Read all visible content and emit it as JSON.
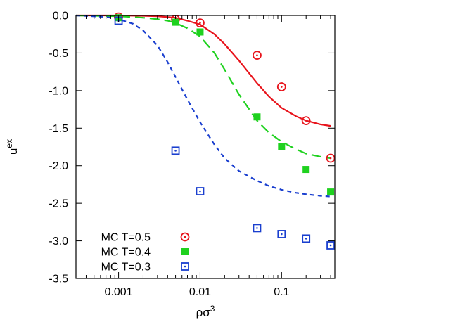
{
  "chart_data": {
    "type": "scatter",
    "x_scale": "log",
    "xlim": [
      0.0003,
      0.45
    ],
    "ylim": [
      -3.5,
      0.0
    ],
    "x_ticks": [
      {
        "value": 0.001,
        "label": "0.001"
      },
      {
        "value": 0.01,
        "label": "0.01"
      },
      {
        "value": 0.1,
        "label": "0.1"
      }
    ],
    "y_ticks": [
      {
        "value": 0.0,
        "label": "0.0"
      },
      {
        "value": -0.5,
        "label": "-0.5"
      },
      {
        "value": -1.0,
        "label": "-1.0"
      },
      {
        "value": -1.5,
        "label": "-1.5"
      },
      {
        "value": -2.0,
        "label": "-2.0"
      },
      {
        "value": -2.5,
        "label": "-2.5"
      },
      {
        "value": -3.0,
        "label": "-3.0"
      },
      {
        "value": -3.5,
        "label": "-3.5"
      }
    ],
    "xlabel": {
      "base": "ρσ",
      "sup": "3"
    },
    "ylabel": {
      "base": "u",
      "sup": "ex"
    },
    "legend_position": "bottom-left",
    "curves": [
      {
        "color": "#e8141c",
        "style": "solid",
        "x": [
          0.0003,
          0.001,
          0.002,
          0.003,
          0.005,
          0.007,
          0.01,
          0.015,
          0.02,
          0.03,
          0.05,
          0.07,
          0.1,
          0.15,
          0.2,
          0.3,
          0.4
        ],
        "y": [
          0.0,
          0.0,
          -0.005,
          -0.01,
          -0.03,
          -0.07,
          -0.12,
          -0.25,
          -0.38,
          -0.6,
          -0.9,
          -1.08,
          -1.23,
          -1.34,
          -1.4,
          -1.45,
          -1.47
        ]
      },
      {
        "color": "#1fd11f",
        "style": "long-dash",
        "x": [
          0.0003,
          0.001,
          0.002,
          0.003,
          0.004,
          0.005,
          0.007,
          0.01,
          0.015,
          0.02,
          0.03,
          0.05,
          0.07,
          0.1,
          0.15,
          0.2,
          0.3,
          0.4
        ],
        "y": [
          0.0,
          -0.01,
          -0.03,
          -0.05,
          -0.07,
          -0.1,
          -0.17,
          -0.28,
          -0.5,
          -0.72,
          -1.05,
          -1.4,
          -1.56,
          -1.68,
          -1.78,
          -1.84,
          -1.88,
          -1.9
        ]
      },
      {
        "color": "#1a3fcf",
        "style": "short-dash",
        "x": [
          0.0003,
          0.0007,
          0.001,
          0.0015,
          0.002,
          0.003,
          0.004,
          0.005,
          0.007,
          0.01,
          0.015,
          0.02,
          0.03,
          0.05,
          0.07,
          0.1,
          0.15,
          0.2,
          0.3,
          0.4
        ],
        "y": [
          0.0,
          -0.02,
          -0.05,
          -0.11,
          -0.2,
          -0.4,
          -0.62,
          -0.82,
          -1.12,
          -1.42,
          -1.72,
          -1.9,
          -2.07,
          -2.2,
          -2.27,
          -2.32,
          -2.36,
          -2.38,
          -2.4,
          -2.41
        ]
      }
    ],
    "series": [
      {
        "name": "MC T=0.5",
        "marker": "circle-dot",
        "color": "#e8141c",
        "x": [
          0.001,
          0.005,
          0.01,
          0.05,
          0.1,
          0.2,
          0.4
        ],
        "y": [
          -0.02,
          -0.05,
          -0.1,
          -0.53,
          -0.95,
          -1.4,
          -1.9
        ]
      },
      {
        "name": "MC T=0.4",
        "marker": "filled-square",
        "color": "#1fd11f",
        "x": [
          0.001,
          0.005,
          0.01,
          0.05,
          0.1,
          0.2,
          0.4
        ],
        "y": [
          -0.03,
          -0.09,
          -0.22,
          -1.35,
          -1.75,
          -2.05,
          -2.35
        ]
      },
      {
        "name": "MC T=0.3",
        "marker": "square-dot",
        "color": "#1a3fcf",
        "x": [
          0.001,
          0.005,
          0.01,
          0.05,
          0.1,
          0.2,
          0.4
        ],
        "y": [
          -0.07,
          -1.8,
          -2.34,
          -2.83,
          -2.91,
          -2.97,
          -3.06
        ]
      }
    ]
  }
}
